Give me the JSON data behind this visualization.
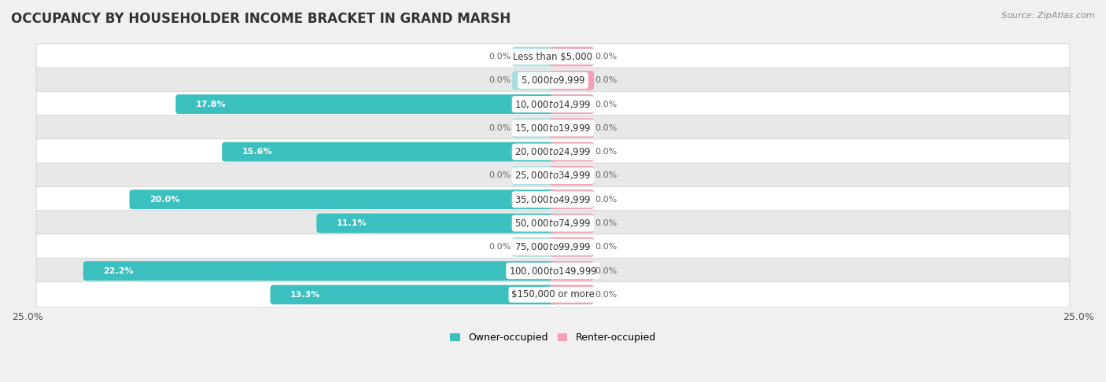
{
  "title": "OCCUPANCY BY HOUSEHOLDER INCOME BRACKET IN GRAND MARSH",
  "source": "Source: ZipAtlas.com",
  "categories": [
    "Less than $5,000",
    "$5,000 to $9,999",
    "$10,000 to $14,999",
    "$15,000 to $19,999",
    "$20,000 to $24,999",
    "$25,000 to $34,999",
    "$35,000 to $49,999",
    "$50,000 to $74,999",
    "$75,000 to $99,999",
    "$100,000 to $149,999",
    "$150,000 or more"
  ],
  "owner_values": [
    0.0,
    0.0,
    17.8,
    0.0,
    15.6,
    0.0,
    20.0,
    11.1,
    0.0,
    22.2,
    13.3
  ],
  "renter_values": [
    0.0,
    0.0,
    0.0,
    0.0,
    0.0,
    0.0,
    0.0,
    0.0,
    0.0,
    0.0,
    0.0
  ],
  "owner_color": "#3BBFBF",
  "owner_color_light": "#A8DEDE",
  "renter_color": "#F4A0B5",
  "renter_color_light": "#F4A0B5",
  "owner_label": "Owner-occupied",
  "renter_label": "Renter-occupied",
  "xlim": 25.0,
  "min_bar": 1.8,
  "bar_height": 0.52,
  "bg_color": "#f0f0f0",
  "row_color_odd": "#ffffff",
  "row_color_even": "#e8e8e8",
  "title_fontsize": 12,
  "source_fontsize": 8,
  "axis_label_fontsize": 9,
  "label_fontsize": 8,
  "category_fontsize": 8.5
}
